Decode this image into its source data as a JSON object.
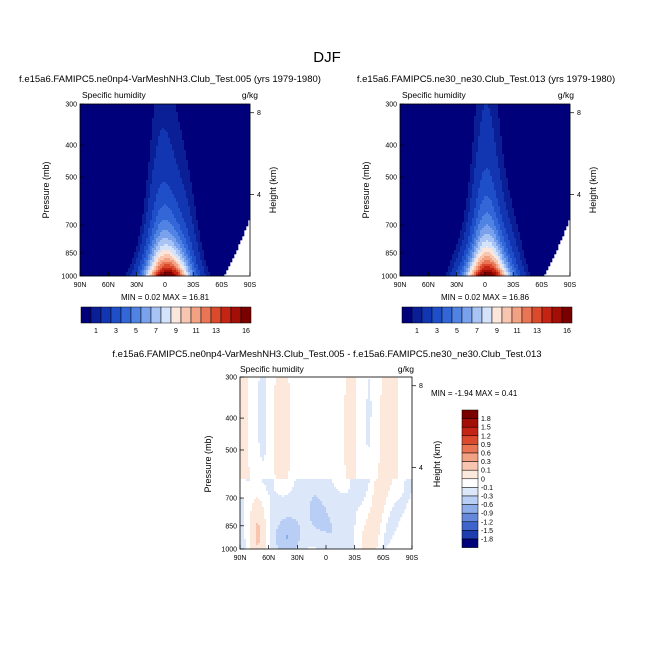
{
  "figure": {
    "title": "DJF"
  },
  "chart_data": [
    {
      "type": "contour",
      "title": "f.e15a6.FAMIPC5.ne0np4-VarMeshNH3.Club_Test.005 (yrs 1979-1980)",
      "left_label": "Specific humidity",
      "right_label": "g/kg",
      "xlabel": "",
      "ylabel": "Pressure (mb)",
      "ylabel_right": "Height (km)",
      "x_ticks": [
        "90N",
        "60N",
        "30N",
        "0",
        "30S",
        "60S",
        "90S"
      ],
      "y_ticks": [
        "300",
        "400",
        "500",
        "700",
        "850",
        "1000"
      ],
      "height_ticks": [
        "8",
        "4"
      ],
      "xlim": [
        90,
        -90
      ],
      "ylim": [
        1000,
        300
      ],
      "min_label": "MIN =  0.02  MAX =  16.81",
      "min": 0.02,
      "max": 16.81,
      "colorbar_labels": [
        "1",
        "3",
        "5",
        "7",
        "9",
        "11",
        "13",
        "16"
      ]
    },
    {
      "type": "contour",
      "title": "f.e15a6.FAMIPC5.ne30_ne30.Club_Test.013 (yrs 1979-1980)",
      "left_label": "Specific humidity",
      "right_label": "g/kg",
      "xlabel": "",
      "ylabel": "Pressure (mb)",
      "ylabel_right": "Height (km)",
      "x_ticks": [
        "90N",
        "60N",
        "30N",
        "0",
        "30S",
        "60S",
        "90S"
      ],
      "y_ticks": [
        "300",
        "400",
        "500",
        "700",
        "850",
        "1000"
      ],
      "height_ticks": [
        "8",
        "4"
      ],
      "xlim": [
        90,
        -90
      ],
      "ylim": [
        1000,
        300
      ],
      "min_label": "MIN =  0.02  MAX =  16.86",
      "min": 0.02,
      "max": 16.86,
      "colorbar_labels": [
        "1",
        "3",
        "5",
        "7",
        "9",
        "11",
        "13",
        "16"
      ]
    },
    {
      "type": "contour",
      "title": "f.e15a6.FAMIPC5.ne0np4-VarMeshNH3.Club_Test.005 - f.e15a6.FAMIPC5.ne30_ne30.Club_Test.013",
      "left_label": "Specific humidity",
      "right_label": "g/kg",
      "xlabel": "",
      "ylabel": "Pressure (mb)",
      "ylabel_right": "Height (km)",
      "x_ticks": [
        "90N",
        "60N",
        "30N",
        "0",
        "30S",
        "60S",
        "90S"
      ],
      "y_ticks": [
        "300",
        "400",
        "500",
        "700",
        "850",
        "1000"
      ],
      "height_ticks": [
        "8",
        "4"
      ],
      "xlim": [
        90,
        -90
      ],
      "ylim": [
        1000,
        300
      ],
      "min_label": "MIN = -1.94  MAX =  0.41",
      "min": -1.94,
      "max": 0.41,
      "colorbar_labels": [
        "1.8",
        "1.5",
        "1.2",
        "0.9",
        "0.6",
        "0.3",
        "0.1",
        "0",
        "-0.1",
        "-0.3",
        "-0.6",
        "-0.9",
        "-1.2",
        "-1.5",
        "-1.8"
      ]
    }
  ],
  "colors": {
    "humidity_scale": [
      "#00007a",
      "#0a1e96",
      "#1236b2",
      "#1e4ec8",
      "#3366d6",
      "#5083e2",
      "#7aa2ec",
      "#a8c4f4",
      "#d4e2fa",
      "#fbe6dc",
      "#f8c6b0",
      "#f3a183",
      "#ea7555",
      "#dc4a2e",
      "#c42414",
      "#a30e06",
      "#7a0000"
    ],
    "difference_scale": [
      "#7a0000",
      "#a30e06",
      "#c42414",
      "#dc4a2e",
      "#ea7555",
      "#f3a183",
      "#f8c6b0",
      "#fde8dc",
      "#ffffff",
      "#dce8fa",
      "#b8cef4",
      "#8eaeea",
      "#6688dc",
      "#3f64cc",
      "#1e3eb0",
      "#00007a"
    ]
  }
}
